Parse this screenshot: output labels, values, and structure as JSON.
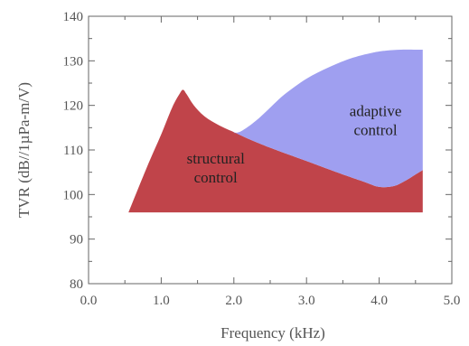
{
  "chart_data": {
    "type": "area",
    "xlabel": "Frequency (kHz)",
    "ylabel": "TVR (dB//1µPa-m/V)",
    "xlim": [
      0.0,
      5.0
    ],
    "ylim": [
      80,
      140
    ],
    "xticks": [
      0.0,
      1.0,
      2.0,
      3.0,
      4.0,
      5.0
    ],
    "xtick_labels": [
      "0.0",
      "1.0",
      "2.0",
      "3.0",
      "4.0",
      "5.0"
    ],
    "yticks": [
      80,
      90,
      100,
      110,
      120,
      130,
      140
    ],
    "ytick_labels": [
      "80",
      "90",
      "100",
      "110",
      "120",
      "130",
      "140"
    ],
    "baseline": 96,
    "series": [
      {
        "name": "structural control",
        "color": "#c0444a",
        "label_lines": [
          "structural",
          "control"
        ],
        "x": [
          0.55,
          0.8,
          1.0,
          1.15,
          1.25,
          1.3,
          1.35,
          1.45,
          1.6,
          1.8,
          2.0,
          2.2,
          2.5,
          3.0,
          3.5,
          3.8,
          4.0,
          4.2,
          4.35,
          4.5,
          4.6
        ],
        "y": [
          96,
          106,
          113.5,
          119.5,
          122.5,
          123.5,
          122.5,
          120,
          117.5,
          115.5,
          114,
          112.5,
          110.5,
          107.5,
          104.5,
          102.8,
          101.7,
          101.9,
          103,
          104.5,
          105.5
        ]
      },
      {
        "name": "adaptive control",
        "color": "#9f9ff0",
        "label_lines": [
          "adaptive",
          "control"
        ],
        "x": [
          2.0,
          2.1,
          2.3,
          2.5,
          2.7,
          3.0,
          3.3,
          3.6,
          3.9,
          4.1,
          4.3,
          4.5,
          4.6
        ],
        "y": [
          113.8,
          114.2,
          116.5,
          119.5,
          122.5,
          126,
          128.5,
          130.5,
          131.8,
          132.3,
          132.5,
          132.5,
          132.5
        ]
      }
    ],
    "grid": false,
    "legend": "none (labels inside regions)"
  }
}
